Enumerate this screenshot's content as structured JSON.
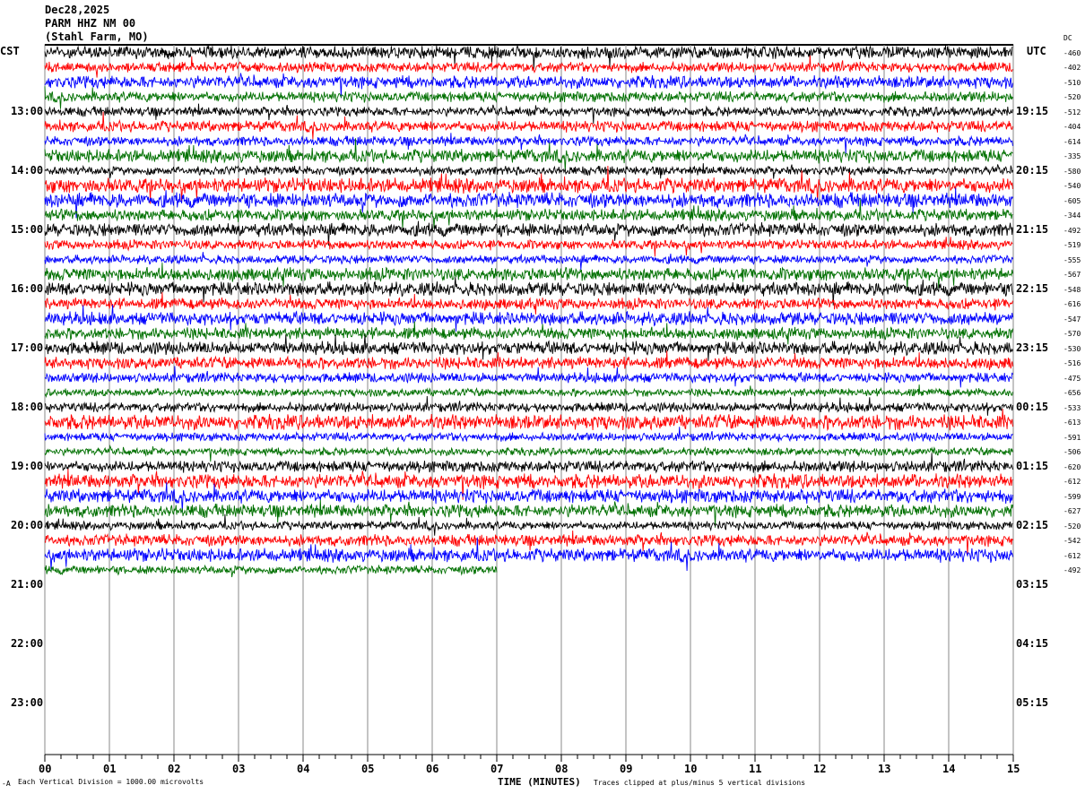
{
  "header": {
    "date": "Dec28,2025",
    "station": "PARM HHZ NM 00",
    "location": "(Stahl Farm, MO)"
  },
  "left_axis": {
    "label": "CST",
    "hours": [
      "13:00",
      "14:00",
      "15:00",
      "16:00",
      "17:00",
      "18:00",
      "19:00",
      "20:00",
      "21:00",
      "22:00",
      "23:00"
    ]
  },
  "right_axis": {
    "label": "UTC",
    "dc_label": "DC",
    "hours": [
      "19:15",
      "20:15",
      "21:15",
      "22:15",
      "23:15",
      "00:15",
      "01:15",
      "02:15",
      "03:15",
      "04:15",
      "05:15"
    ]
  },
  "footer": {
    "scale": "Each Vertical Division = 1000.00 microvolts",
    "xlabel": "TIME (MINUTES)",
    "clip": "Traces clipped at plus/minus 5 vertical divisions",
    "corner_mark": "-A"
  },
  "chart_data": {
    "type": "line",
    "subtype": "helicorder",
    "xlabel": "TIME (MINUTES)",
    "xlim": [
      0,
      15
    ],
    "x_ticks": [
      "00",
      "01",
      "02",
      "03",
      "04",
      "05",
      "06",
      "07",
      "08",
      "09",
      "10",
      "11",
      "12",
      "13",
      "14",
      "15"
    ],
    "grid": "vertical lines every minute",
    "trace_colors": [
      "#000000",
      "#ff0000",
      "#0000ff",
      "#007000"
    ],
    "traces_per_hour": 4,
    "start_time_cst": "12:00",
    "last_trace_end_minute": 7,
    "dc_offsets": [
      -460,
      -402,
      -510,
      -520,
      -512,
      -404,
      -614,
      -335,
      -580,
      -540,
      -605,
      -344,
      -492,
      -519,
      -555,
      -567,
      -548,
      -616,
      -547,
      -570,
      -530,
      -516,
      -475,
      -656,
      -533,
      -613,
      -591,
      -506,
      -620,
      -612,
      -599,
      -627,
      -520,
      -542,
      -612,
      -492
    ]
  }
}
